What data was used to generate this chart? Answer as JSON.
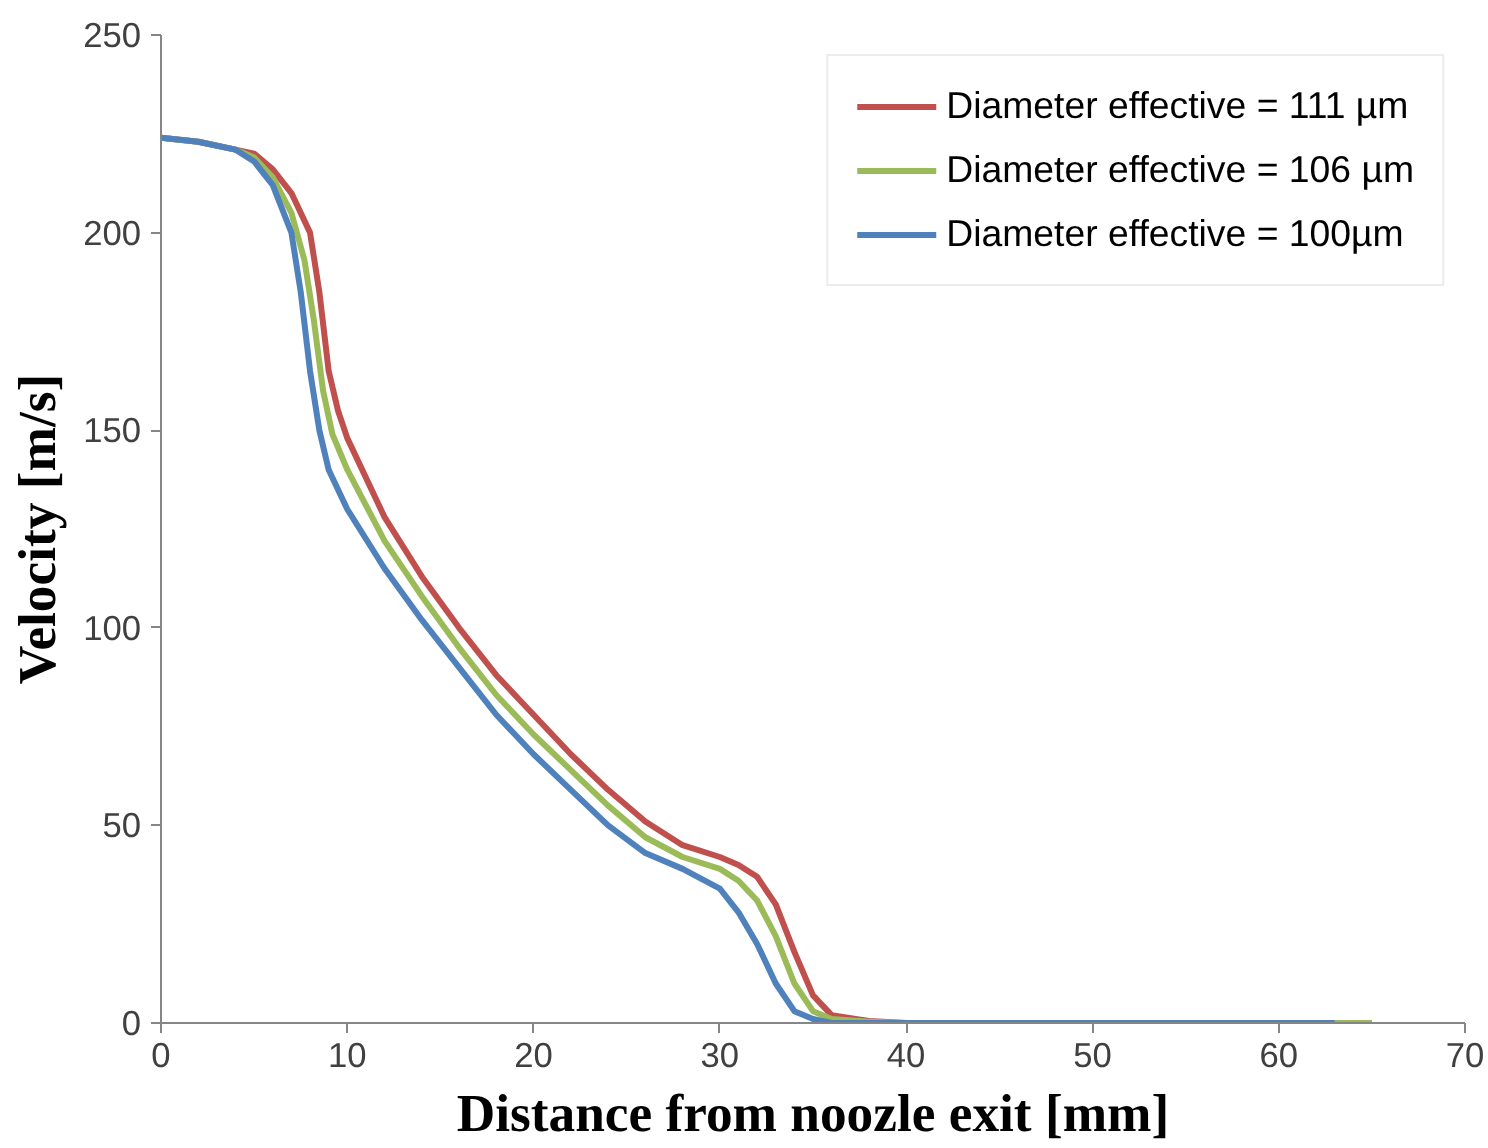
{
  "chart_data": {
    "type": "line",
    "xlabel": "Distance from noozle exit [mm]",
    "ylabel": "Velocity [m/s]",
    "xlim": [
      0,
      70
    ],
    "ylim": [
      0,
      250
    ],
    "xticks": [
      0,
      10,
      20,
      30,
      40,
      50,
      60,
      70
    ],
    "yticks": [
      0,
      50,
      100,
      150,
      200,
      250
    ],
    "grid": false,
    "legend": "top right",
    "line_style": "solid",
    "marker": "none",
    "series": [
      {
        "name": "Diameter effective = 111 µm",
        "color": "#c0504d",
        "x": [
          0,
          2,
          4,
          5,
          6,
          7,
          8,
          8.5,
          9,
          9.5,
          10,
          12,
          14,
          16,
          18,
          20,
          22,
          24,
          26,
          28,
          30,
          31,
          32,
          33,
          34,
          35,
          36,
          38,
          40,
          50,
          65
        ],
        "values": [
          224,
          223,
          221,
          220,
          216,
          210,
          200,
          185,
          165,
          155,
          148,
          128,
          113,
          100,
          88,
          78,
          68,
          59,
          51,
          45,
          42,
          40,
          37,
          30,
          18,
          7,
          2,
          0.5,
          0,
          0,
          0
        ]
      },
      {
        "name": "Diameter effective = 106 µm",
        "color": "#9bbb59",
        "x": [
          0,
          2,
          4,
          5,
          6,
          7,
          7.7,
          8.2,
          8.7,
          9.2,
          10,
          12,
          14,
          16,
          18,
          20,
          22,
          24,
          26,
          28,
          30,
          31,
          32,
          33,
          34,
          35,
          36,
          38,
          40,
          50,
          65
        ],
        "values": [
          224,
          223,
          221,
          219,
          214,
          205,
          193,
          178,
          160,
          149,
          140,
          122,
          108,
          95,
          83,
          73,
          64,
          55,
          47,
          42,
          39,
          36,
          31,
          22,
          10,
          3,
          1,
          0.3,
          0,
          0,
          0
        ]
      },
      {
        "name": "Diameter effective = 100µm",
        "color": "#4f81bd",
        "x": [
          0,
          2,
          4,
          5,
          6,
          7,
          7.5,
          8,
          8.5,
          9,
          10,
          12,
          14,
          16,
          18,
          20,
          22,
          24,
          26,
          28,
          30,
          31,
          32,
          33,
          34,
          35,
          36,
          40,
          50,
          63
        ],
        "values": [
          224,
          223,
          221,
          218,
          212,
          200,
          185,
          165,
          150,
          140,
          130,
          115,
          102,
          90,
          78,
          68,
          59,
          50,
          43,
          39,
          34,
          28,
          20,
          10,
          3,
          1,
          0,
          0,
          0,
          0
        ]
      }
    ]
  }
}
